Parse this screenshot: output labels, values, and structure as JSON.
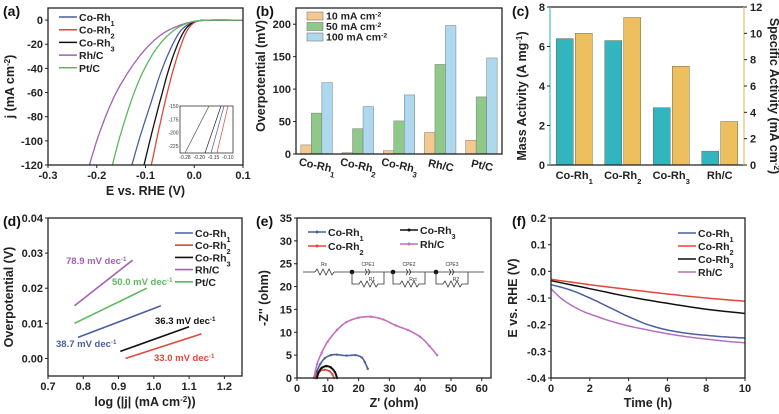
{
  "chart_data": [
    {
      "panel": "(a)",
      "type": "line",
      "title": "",
      "xlabel": "E vs. RHE (V)",
      "ylabel": "j (mA cm-2)",
      "xlim": [
        -0.3,
        0.1
      ],
      "ylim": [
        -120,
        10
      ],
      "xticks": [
        "-0.3",
        "-0.2",
        "-0.1",
        "0.0",
        "0.1"
      ],
      "yticks": [
        "0",
        "-20",
        "-40",
        "-60",
        "-80",
        "-100",
        "-120"
      ],
      "legend_position": "top-left",
      "series": [
        {
          "name": "Co-Rh1",
          "color": "#4a5fa0",
          "points": [
            [
              -0.128,
              -120
            ],
            [
              -0.11,
              -95
            ],
            [
              -0.09,
              -70
            ],
            [
              -0.07,
              -45
            ],
            [
              -0.05,
              -25
            ],
            [
              -0.03,
              -10
            ],
            [
              -0.01,
              -3
            ],
            [
              0.01,
              -0.5
            ],
            [
              0.03,
              0
            ],
            [
              0.1,
              0
            ]
          ]
        },
        {
          "name": "Co-Rh2",
          "color": "#e0473a",
          "points": [
            [
              -0.088,
              -120
            ],
            [
              -0.075,
              -95
            ],
            [
              -0.06,
              -68
            ],
            [
              -0.045,
              -44
            ],
            [
              -0.03,
              -24
            ],
            [
              -0.015,
              -9
            ],
            [
              0.0,
              -2
            ],
            [
              0.015,
              -0.3
            ],
            [
              0.03,
              0
            ],
            [
              0.1,
              0
            ]
          ]
        },
        {
          "name": "Co-Rh3",
          "color": "#111111",
          "points": [
            [
              -0.103,
              -120
            ],
            [
              -0.088,
              -95
            ],
            [
              -0.072,
              -70
            ],
            [
              -0.056,
              -46
            ],
            [
              -0.04,
              -26
            ],
            [
              -0.022,
              -10
            ],
            [
              -0.005,
              -2.5
            ],
            [
              0.012,
              -0.4
            ],
            [
              0.03,
              0
            ],
            [
              0.1,
              0
            ]
          ]
        },
        {
          "name": "Rh/C",
          "color": "#a361b0",
          "points": [
            [
              -0.215,
              -120
            ],
            [
              -0.2,
              -100
            ],
            [
              -0.18,
              -78
            ],
            [
              -0.16,
              -60
            ],
            [
              -0.14,
              -46
            ],
            [
              -0.12,
              -34
            ],
            [
              -0.1,
              -24
            ],
            [
              -0.08,
              -16
            ],
            [
              -0.06,
              -10
            ],
            [
              -0.04,
              -6
            ],
            [
              -0.02,
              -3
            ],
            [
              0.0,
              -1.2
            ],
            [
              0.02,
              -0.3
            ],
            [
              0.04,
              0
            ],
            [
              0.1,
              0
            ]
          ]
        },
        {
          "name": "Pt/C",
          "color": "#5cb85c",
          "points": [
            [
              -0.168,
              -120
            ],
            [
              -0.155,
              -100
            ],
            [
              -0.14,
              -80
            ],
            [
              -0.125,
              -62
            ],
            [
              -0.11,
              -47
            ],
            [
              -0.095,
              -35
            ],
            [
              -0.08,
              -25
            ],
            [
              -0.06,
              -15
            ],
            [
              -0.04,
              -8
            ],
            [
              -0.02,
              -3.5
            ],
            [
              0.0,
              -1
            ],
            [
              0.02,
              -0.2
            ],
            [
              0.04,
              0
            ],
            [
              0.1,
              0
            ]
          ]
        }
      ],
      "inset": {
        "xticks": [
          "-0.28",
          "-0.20",
          "-0.15",
          "-0.10"
        ],
        "yticks": [
          "-150",
          "-175",
          "-200",
          "-225"
        ]
      }
    },
    {
      "panel": "(b)",
      "type": "bar",
      "title": "",
      "xlabel": "",
      "ylabel": "Overpotential (mV)",
      "ylim": [
        0,
        225
      ],
      "yticks": [
        "0",
        "50",
        "100",
        "150",
        "200"
      ],
      "categories": [
        "Co-Rh1",
        "Co-Rh2",
        "Co-Rh3",
        "Rh/C",
        "Pt/C"
      ],
      "legend_position": "top-left",
      "series": [
        {
          "name": "10 mA cm-2",
          "color": "#f3c98f",
          "values": [
            14,
            2,
            5,
            33,
            21
          ]
        },
        {
          "name": "50 mA cm-2",
          "color": "#8fc98a",
          "values": [
            63,
            39,
            51,
            138,
            88
          ]
        },
        {
          "name": "100 mA cm-2",
          "color": "#add8ee",
          "values": [
            110,
            73,
            91,
            198,
            148
          ]
        }
      ]
    },
    {
      "panel": "(c)",
      "type": "bar",
      "title": "",
      "xlabel": "",
      "ylabel": "Mass Activity (A mg-1)",
      "ylabel_right": "Specific Activity (mA cm-2)",
      "ylim": [
        0,
        8
      ],
      "ylim_right": [
        0,
        12
      ],
      "yticks": [
        "0",
        "2",
        "4",
        "6",
        "8"
      ],
      "yticks_right": [
        "0",
        "2",
        "4",
        "6",
        "8",
        "10",
        "12"
      ],
      "categories": [
        "Co-Rh1",
        "Co-Rh2",
        "Co-Rh3",
        "Rh/C"
      ],
      "series": [
        {
          "name": "Mass Activity",
          "axis": "left",
          "color": "#33b5bf",
          "values": [
            6.4,
            6.3,
            2.9,
            0.7
          ]
        },
        {
          "name": "Specific Activity",
          "axis": "right",
          "color": "#edbf5e",
          "values": [
            10.0,
            11.2,
            7.5,
            3.3
          ]
        }
      ]
    },
    {
      "panel": "(d)",
      "type": "line",
      "title": "",
      "xlabel": "log (|j| (mA cm-2))",
      "ylabel": "Overpotential (V)",
      "xlim": [
        0.7,
        1.25
      ],
      "ylim": [
        -0.005,
        0.04
      ],
      "xticks": [
        "0.7",
        "0.8",
        "0.9",
        "1.0",
        "1.1",
        "1.2"
      ],
      "yticks": [
        "0.00",
        "0.01",
        "0.02",
        "0.03",
        "0.04"
      ],
      "legend_position": "top-right",
      "series": [
        {
          "name": "Co-Rh1",
          "color": "#4a5fa0",
          "points": [
            [
              0.785,
              0.006
            ],
            [
              1.02,
              0.015
            ]
          ],
          "annotation": "38.7 mV dec-1"
        },
        {
          "name": "Co-Rh2",
          "color": "#e0473a",
          "points": [
            [
              0.92,
              0.0
            ],
            [
              1.135,
              0.007
            ]
          ],
          "annotation": "33.0 mV dec-1"
        },
        {
          "name": "Co-Rh3",
          "color": "#111111",
          "points": [
            [
              0.905,
              0.002
            ],
            [
              1.1,
              0.009
            ]
          ],
          "annotation": "36.3 mV dec-1"
        },
        {
          "name": "Rh/C",
          "color": "#a361b0",
          "points": [
            [
              0.775,
              0.015
            ],
            [
              0.94,
              0.028
            ]
          ],
          "annotation": "78.9 mV dec-1"
        },
        {
          "name": "Pt/C",
          "color": "#5cb85c",
          "points": [
            [
              0.775,
              0.01
            ],
            [
              0.98,
              0.02
            ]
          ],
          "annotation": "50.0 mV dec-1"
        }
      ]
    },
    {
      "panel": "(e)",
      "type": "scatter",
      "title": "",
      "xlabel": "Z' (ohm)",
      "ylabel": "-Z'' (ohm)",
      "xlim": [
        0,
        63
      ],
      "ylim": [
        0,
        35
      ],
      "xticks": [
        "0",
        "10",
        "20",
        "30",
        "40",
        "50",
        "60"
      ],
      "yticks": [
        "0",
        "5",
        "10",
        "15",
        "20",
        "25",
        "30",
        "35"
      ],
      "legend_position": "top",
      "circuit_labels": [
        "Rs",
        "CPE1",
        "R1",
        "CPE2",
        "Rct",
        "CPE3",
        "R2"
      ],
      "series": [
        {
          "name": "Co-Rh1",
          "color": "#4a5fa0",
          "points": [
            [
              6,
              0
            ],
            [
              6.5,
              1.5
            ],
            [
              7.5,
              3
            ],
            [
              9,
              4.3
            ],
            [
              11,
              5
            ],
            [
              13,
              5.1
            ],
            [
              16,
              4.9
            ],
            [
              19,
              5
            ],
            [
              21,
              4.5
            ],
            [
              22,
              3.5
            ],
            [
              23,
              2
            ]
          ]
        },
        {
          "name": "Co-Rh2",
          "color": "#e0473a",
          "points": [
            [
              6,
              0
            ],
            [
              6.5,
              0.8
            ],
            [
              7.5,
              1.5
            ],
            [
              9,
              1.8
            ],
            [
              10.5,
              1.5
            ],
            [
              11.5,
              0.8
            ],
            [
              12,
              0
            ]
          ]
        },
        {
          "name": "Co-Rh3",
          "color": "#111111",
          "points": [
            [
              6.5,
              0
            ],
            [
              7,
              1.2
            ],
            [
              8,
              2.2
            ],
            [
              9.5,
              2.6
            ],
            [
              11,
              2.3
            ],
            [
              12.3,
              1.3
            ],
            [
              13,
              0
            ]
          ]
        },
        {
          "name": "Rh/C",
          "color": "#c36fbf",
          "points": [
            [
              5.5,
              0
            ],
            [
              6.5,
              3
            ],
            [
              8,
              5.5
            ],
            [
              10,
              8
            ],
            [
              13,
              10.5
            ],
            [
              16,
              12.2
            ],
            [
              20,
              13.2
            ],
            [
              24,
              13.4
            ],
            [
              28,
              12.8
            ],
            [
              32,
              11.5
            ],
            [
              36,
              10.5
            ],
            [
              40,
              9
            ],
            [
              43,
              7
            ],
            [
              45.5,
              5
            ]
          ]
        }
      ]
    },
    {
      "panel": "(f)",
      "type": "line",
      "title": "",
      "xlabel": "Time (h)",
      "ylabel": "E vs. RHE (V)",
      "xlim": [
        0,
        10
      ],
      "ylim": [
        -0.4,
        0.2
      ],
      "xticks": [
        "0",
        "2",
        "4",
        "6",
        "8",
        "10"
      ],
      "yticks": [
        "-0.4",
        "-0.3",
        "-0.2",
        "-0.1",
        "0.0",
        "0.1",
        "0.2"
      ],
      "legend_position": "top-right",
      "series": [
        {
          "name": "Co-Rh1",
          "color": "#4a5fa0",
          "points": [
            [
              0,
              -0.05
            ],
            [
              1,
              -0.07
            ],
            [
              2,
              -0.1
            ],
            [
              3,
              -0.135
            ],
            [
              4,
              -0.17
            ],
            [
              5,
              -0.2
            ],
            [
              6,
              -0.22
            ],
            [
              7,
              -0.232
            ],
            [
              8,
              -0.24
            ],
            [
              9,
              -0.246
            ],
            [
              10,
              -0.25
            ]
          ]
        },
        {
          "name": "Co-Rh2",
          "color": "#e0473a",
          "points": [
            [
              0,
              -0.03
            ],
            [
              2,
              -0.05
            ],
            [
              4,
              -0.068
            ],
            [
              6,
              -0.085
            ],
            [
              8,
              -0.1
            ],
            [
              10,
              -0.112
            ]
          ]
        },
        {
          "name": "Co-Rh3",
          "color": "#111111",
          "points": [
            [
              0,
              -0.035
            ],
            [
              2,
              -0.065
            ],
            [
              4,
              -0.095
            ],
            [
              6,
              -0.12
            ],
            [
              8,
              -0.142
            ],
            [
              10,
              -0.158
            ]
          ]
        },
        {
          "name": "Rh/C",
          "color": "#b470c0",
          "points": [
            [
              0,
              -0.065
            ],
            [
              0.5,
              -0.1
            ],
            [
              1,
              -0.125
            ],
            [
              1.5,
              -0.145
            ],
            [
              2,
              -0.16
            ],
            [
              3,
              -0.185
            ],
            [
              4,
              -0.205
            ],
            [
              5,
              -0.22
            ],
            [
              6,
              -0.234
            ],
            [
              7,
              -0.245
            ],
            [
              8,
              -0.254
            ],
            [
              9,
              -0.262
            ],
            [
              10,
              -0.268
            ]
          ]
        }
      ]
    }
  ]
}
